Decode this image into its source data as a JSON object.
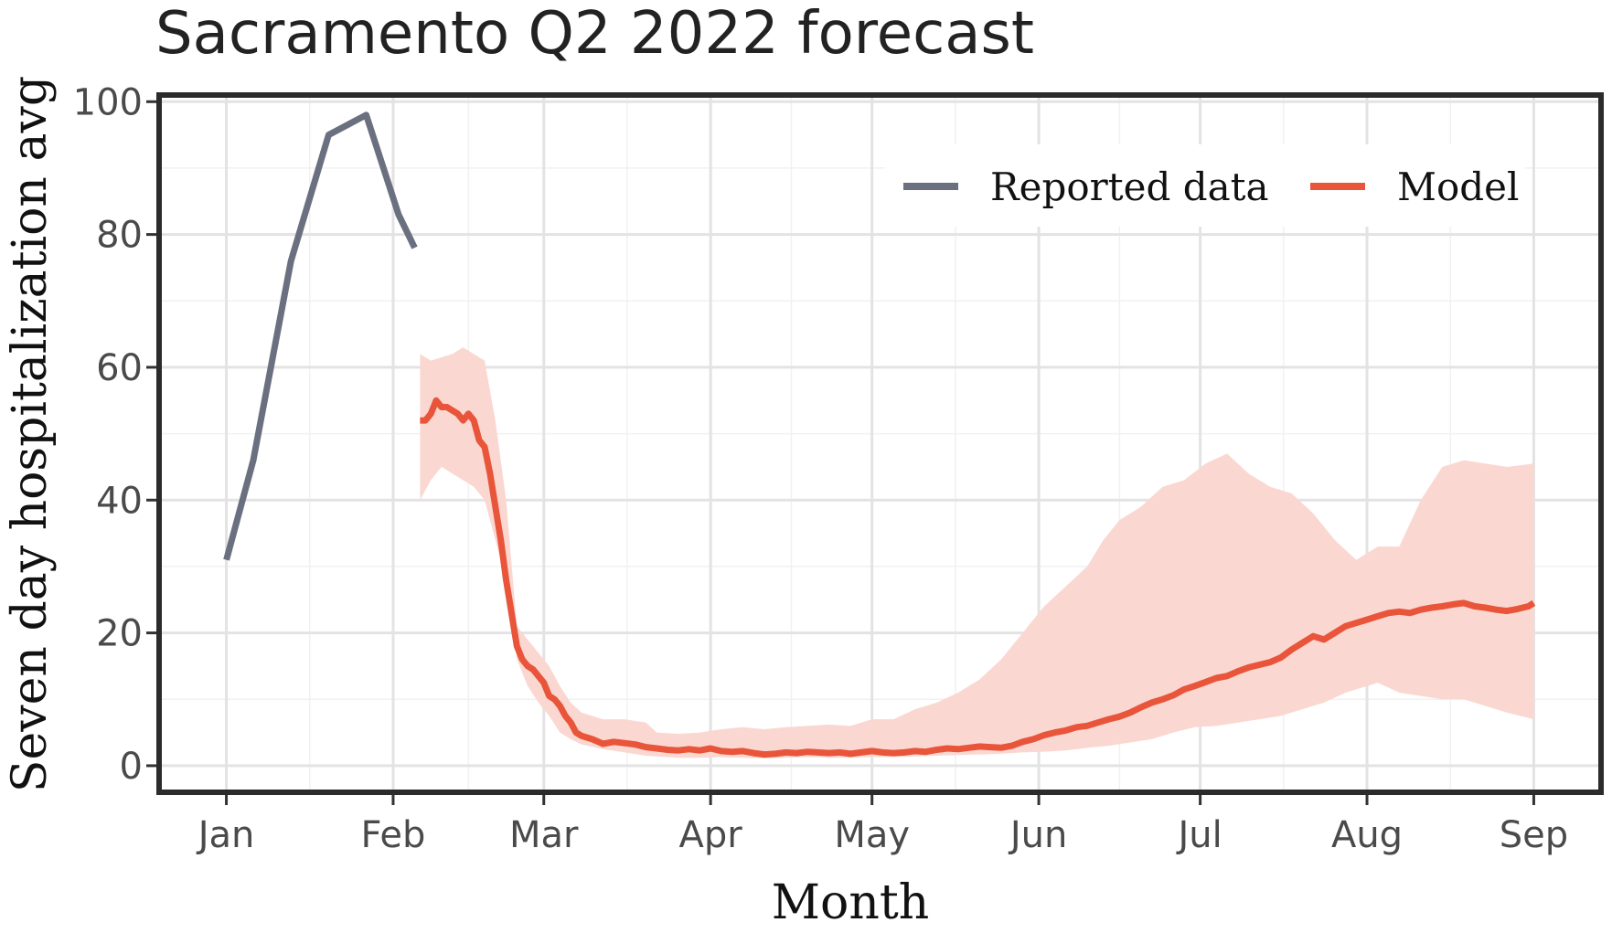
{
  "chart_data": {
    "type": "line",
    "title": "Sacramento Q2 2022 forecast",
    "xlabel": "Month",
    "ylabel": "Seven day hospitalization avg",
    "x_ticks": [
      {
        "label": "Jan",
        "day": 0
      },
      {
        "label": "Feb",
        "day": 31
      },
      {
        "label": "Mar",
        "day": 59
      },
      {
        "label": "Apr",
        "day": 90
      },
      {
        "label": "May",
        "day": 120
      },
      {
        "label": "Jun",
        "day": 151
      },
      {
        "label": "Jul",
        "day": 181
      },
      {
        "label": "Aug",
        "day": 212
      },
      {
        "label": "Sep",
        "day": 243
      }
    ],
    "xlim": [
      -12.5,
      255.5
    ],
    "ylim": [
      -4,
      101
    ],
    "y_ticks": [
      0,
      20,
      40,
      60,
      80,
      100
    ],
    "grid": true,
    "legend": "top-right",
    "series": [
      {
        "name": "Reported data",
        "color": "#6b7080",
        "points": [
          [
            0,
            31
          ],
          [
            5,
            46
          ],
          [
            12,
            76
          ],
          [
            19,
            95
          ],
          [
            26,
            98
          ],
          [
            32,
            83
          ],
          [
            35,
            78
          ]
        ]
      },
      {
        "name": "Model",
        "color": "#e8553a",
        "points": [
          [
            36,
            52
          ],
          [
            37,
            52
          ],
          [
            38,
            53
          ],
          [
            39,
            55
          ],
          [
            40,
            54
          ],
          [
            41,
            54
          ],
          [
            42,
            53.5
          ],
          [
            43,
            53
          ],
          [
            44,
            52
          ],
          [
            45,
            53
          ],
          [
            46,
            52
          ],
          [
            47,
            49
          ],
          [
            48,
            48
          ],
          [
            49,
            44
          ],
          [
            50,
            39
          ],
          [
            51,
            34
          ],
          [
            52,
            28
          ],
          [
            53,
            23
          ],
          [
            54,
            18
          ],
          [
            55,
            16
          ],
          [
            56,
            15
          ],
          [
            57,
            14.5
          ],
          [
            58,
            13.5
          ],
          [
            59,
            12.5
          ],
          [
            60,
            10.5
          ],
          [
            61,
            10
          ],
          [
            62,
            9
          ],
          [
            63,
            7.5
          ],
          [
            64,
            6.5
          ],
          [
            65,
            5
          ],
          [
            66,
            4.5
          ],
          [
            68,
            4
          ],
          [
            70,
            3.3
          ],
          [
            72,
            3.6
          ],
          [
            74,
            3.4
          ],
          [
            76,
            3.2
          ],
          [
            78,
            2.8
          ],
          [
            80,
            2.6
          ],
          [
            82,
            2.4
          ],
          [
            84,
            2.3
          ],
          [
            86,
            2.5
          ],
          [
            88,
            2.3
          ],
          [
            90,
            2.6
          ],
          [
            92,
            2.2
          ],
          [
            94,
            2.1
          ],
          [
            96,
            2.2
          ],
          [
            98,
            1.9
          ],
          [
            100,
            1.7
          ],
          [
            102,
            1.8
          ],
          [
            104,
            2.0
          ],
          [
            106,
            1.9
          ],
          [
            108,
            2.1
          ],
          [
            110,
            2.0
          ],
          [
            112,
            1.9
          ],
          [
            114,
            2.0
          ],
          [
            116,
            1.8
          ],
          [
            118,
            2.0
          ],
          [
            120,
            2.2
          ],
          [
            122,
            2.0
          ],
          [
            124,
            1.9
          ],
          [
            126,
            2.0
          ],
          [
            128,
            2.2
          ],
          [
            130,
            2.1
          ],
          [
            132,
            2.4
          ],
          [
            134,
            2.6
          ],
          [
            136,
            2.5
          ],
          [
            138,
            2.7
          ],
          [
            140,
            2.9
          ],
          [
            142,
            2.8
          ],
          [
            144,
            2.7
          ],
          [
            146,
            3.0
          ],
          [
            148,
            3.6
          ],
          [
            150,
            4.0
          ],
          [
            152,
            4.6
          ],
          [
            154,
            5.0
          ],
          [
            156,
            5.3
          ],
          [
            158,
            5.8
          ],
          [
            160,
            6.0
          ],
          [
            162,
            6.5
          ],
          [
            164,
            7.0
          ],
          [
            166,
            7.4
          ],
          [
            168,
            8.0
          ],
          [
            170,
            8.8
          ],
          [
            172,
            9.5
          ],
          [
            174,
            10.0
          ],
          [
            176,
            10.6
          ],
          [
            178,
            11.5
          ],
          [
            180,
            12.0
          ],
          [
            182,
            12.6
          ],
          [
            184,
            13.2
          ],
          [
            186,
            13.5
          ],
          [
            188,
            14.2
          ],
          [
            190,
            14.8
          ],
          [
            192,
            15.2
          ],
          [
            194,
            15.6
          ],
          [
            196,
            16.3
          ],
          [
            198,
            17.5
          ],
          [
            200,
            18.5
          ],
          [
            202,
            19.5
          ],
          [
            204,
            19.0
          ],
          [
            206,
            20.0
          ],
          [
            208,
            21.0
          ],
          [
            210,
            21.5
          ],
          [
            212,
            22.0
          ],
          [
            214,
            22.5
          ],
          [
            216,
            23.0
          ],
          [
            218,
            23.2
          ],
          [
            220,
            23.0
          ],
          [
            222,
            23.5
          ],
          [
            224,
            23.8
          ],
          [
            226,
            24.0
          ],
          [
            228,
            24.3
          ],
          [
            230,
            24.5
          ],
          [
            232,
            24.0
          ],
          [
            234,
            23.8
          ],
          [
            236,
            23.5
          ],
          [
            238,
            23.3
          ],
          [
            240,
            23.6
          ],
          [
            242,
            24.0
          ],
          [
            243,
            24.5
          ]
        ]
      }
    ],
    "band": {
      "color": "#fad8d1",
      "upper": [
        [
          36,
          62
        ],
        [
          38,
          61
        ],
        [
          40,
          61.5
        ],
        [
          42,
          62
        ],
        [
          44,
          63
        ],
        [
          46,
          62
        ],
        [
          48,
          61
        ],
        [
          50,
          52
        ],
        [
          52,
          40
        ],
        [
          54,
          21
        ],
        [
          56,
          19
        ],
        [
          58,
          17
        ],
        [
          60,
          15
        ],
        [
          62,
          12
        ],
        [
          64,
          9.5
        ],
        [
          66,
          8
        ],
        [
          70,
          7
        ],
        [
          74,
          7
        ],
        [
          78,
          6.5
        ],
        [
          80,
          5
        ],
        [
          84,
          4.8
        ],
        [
          88,
          5
        ],
        [
          92,
          5.5
        ],
        [
          96,
          5.8
        ],
        [
          100,
          5.5
        ],
        [
          104,
          5.8
        ],
        [
          108,
          6
        ],
        [
          112,
          6.2
        ],
        [
          116,
          6
        ],
        [
          120,
          7
        ],
        [
          124,
          7
        ],
        [
          128,
          8.5
        ],
        [
          132,
          9.5
        ],
        [
          136,
          11
        ],
        [
          140,
          13
        ],
        [
          144,
          16
        ],
        [
          148,
          20
        ],
        [
          152,
          24
        ],
        [
          156,
          27
        ],
        [
          160,
          30
        ],
        [
          163,
          34
        ],
        [
          166,
          37
        ],
        [
          170,
          39
        ],
        [
          174,
          42
        ],
        [
          178,
          43
        ],
        [
          182,
          45.5
        ],
        [
          186,
          47
        ],
        [
          190,
          44
        ],
        [
          194,
          42
        ],
        [
          198,
          41
        ],
        [
          202,
          38
        ],
        [
          206,
          34
        ],
        [
          210,
          31
        ],
        [
          214,
          33
        ],
        [
          218,
          33
        ],
        [
          222,
          40
        ],
        [
          226,
          45
        ],
        [
          230,
          46
        ],
        [
          234,
          45.5
        ],
        [
          238,
          45
        ],
        [
          243,
          45.5
        ]
      ],
      "lower": [
        [
          36,
          40
        ],
        [
          38,
          43
        ],
        [
          40,
          45
        ],
        [
          42,
          44
        ],
        [
          44,
          43
        ],
        [
          46,
          42
        ],
        [
          48,
          40
        ],
        [
          50,
          34
        ],
        [
          52,
          28
        ],
        [
          54,
          16
        ],
        [
          56,
          12
        ],
        [
          58,
          9.5
        ],
        [
          60,
          7.5
        ],
        [
          62,
          5
        ],
        [
          64,
          4
        ],
        [
          66,
          3.2
        ],
        [
          70,
          2.5
        ],
        [
          74,
          2
        ],
        [
          78,
          1.5
        ],
        [
          80,
          1.4
        ],
        [
          84,
          1.2
        ],
        [
          88,
          1.2
        ],
        [
          92,
          1.3
        ],
        [
          96,
          1.2
        ],
        [
          100,
          1.1
        ],
        [
          104,
          1.2
        ],
        [
          108,
          1.3
        ],
        [
          112,
          1.2
        ],
        [
          116,
          1.2
        ],
        [
          120,
          1.3
        ],
        [
          124,
          1.3
        ],
        [
          128,
          1.4
        ],
        [
          132,
          1.5
        ],
        [
          136,
          1.6
        ],
        [
          140,
          1.7
        ],
        [
          144,
          1.8
        ],
        [
          148,
          2
        ],
        [
          152,
          2.1
        ],
        [
          156,
          2.3
        ],
        [
          160,
          2.7
        ],
        [
          164,
          3
        ],
        [
          168,
          3.5
        ],
        [
          172,
          4
        ],
        [
          176,
          5
        ],
        [
          180,
          5.8
        ],
        [
          184,
          6
        ],
        [
          188,
          6.5
        ],
        [
          192,
          7
        ],
        [
          196,
          7.5
        ],
        [
          200,
          8.5
        ],
        [
          204,
          9.5
        ],
        [
          208,
          11
        ],
        [
          212,
          12
        ],
        [
          214,
          12.5
        ],
        [
          218,
          11
        ],
        [
          222,
          10.5
        ],
        [
          226,
          10
        ],
        [
          230,
          10
        ],
        [
          234,
          9
        ],
        [
          238,
          8
        ],
        [
          243,
          7
        ]
      ]
    }
  }
}
